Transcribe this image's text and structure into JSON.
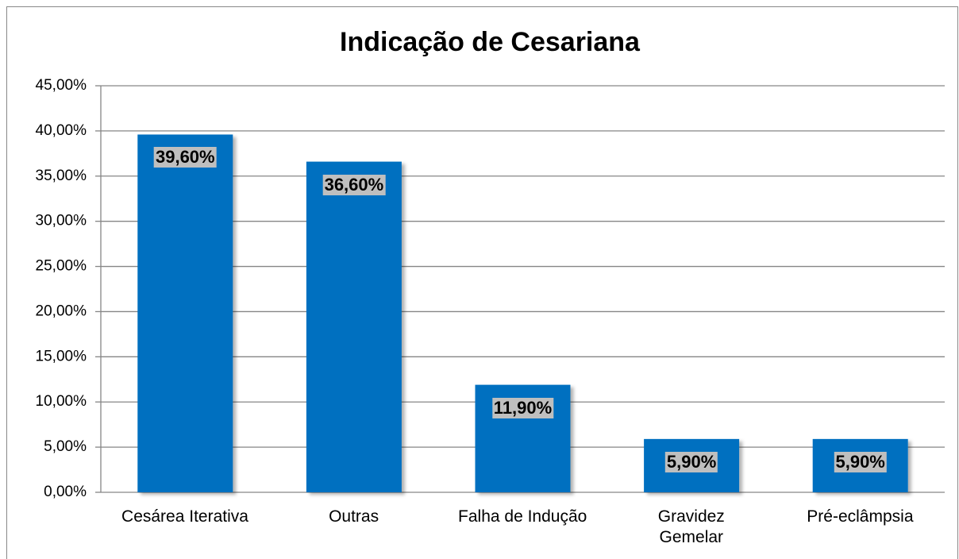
{
  "chart_data": {
    "type": "bar",
    "title": "Indicação de Cesariana",
    "categories": [
      "Cesárea Iterativa",
      "Outras",
      "Falha de Indução",
      "Gravidez\nGemelar",
      "Pré-eclâmpsia"
    ],
    "values": [
      39.6,
      36.6,
      11.9,
      5.9,
      5.9
    ],
    "value_labels": [
      "39,60%",
      "36,60%",
      "11,90%",
      "5,90%",
      "5,90%"
    ],
    "color": "#0070c0",
    "ylim": [
      0,
      45
    ],
    "yticks": [
      {
        "value": 0,
        "label": "0,00%"
      },
      {
        "value": 5,
        "label": "5,00%"
      },
      {
        "value": 10,
        "label": "10,00%"
      },
      {
        "value": 15,
        "label": "15,00%"
      },
      {
        "value": 20,
        "label": "20,00%"
      },
      {
        "value": 25,
        "label": "25,00%"
      },
      {
        "value": 30,
        "label": "30,00%"
      },
      {
        "value": 35,
        "label": "35,00%"
      },
      {
        "value": 40,
        "label": "40,00%"
      },
      {
        "value": 45,
        "label": "45,00%"
      }
    ],
    "grid": true
  }
}
